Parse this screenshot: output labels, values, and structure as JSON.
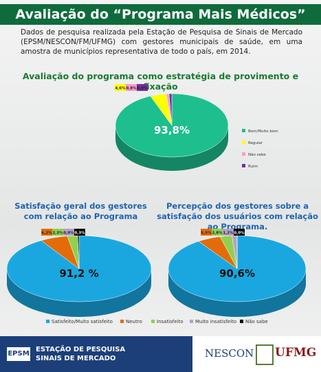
{
  "header": {
    "title": "Avaliação do “Programa Mais Médicos”",
    "text": "Dados de pesquisa realizada pela Estação de Pesquisa de Sinais de Mercado (EPSM/NESCON/FM/UFMG) com gestores municipais de saúde, em uma amostra de municípios representativa de todo o país, em 2014."
  },
  "chart_data": [
    {
      "type": "pie",
      "title": "Avaliação do programa como estratégia de provimento e fixação",
      "categories": [
        "Bom/Muito bom",
        "Regular",
        "Não sabe",
        "Ruim"
      ],
      "values": [
        93.8,
        4.6,
        0.8,
        0.8
      ],
      "value_labels": [
        "93,8%",
        "4,6%",
        "0,8%",
        "0,8%"
      ],
      "colors": [
        "#1dbf8e",
        "#ffff00",
        "#ff99cc",
        "#7030a0"
      ],
      "legend": "right"
    },
    {
      "type": "pie",
      "title": "Satisfação geral dos gestores com relação ao Programa",
      "categories": [
        "Satisfeito/Muito satisfeito",
        "Neutro",
        "Insatisfeito",
        "Muito insatisfeito",
        "Não sabe"
      ],
      "values": [
        91.2,
        6.2,
        2.3,
        0.0,
        0.3
      ],
      "value_labels": [
        "91,2 %",
        "6,2%",
        "2,3%",
        "0,0%",
        "0,3%"
      ],
      "colors": [
        "#1aa7e0",
        "#e36c09",
        "#92d050",
        "#b3a2c7",
        "#000000"
      ],
      "legend": "bottom"
    },
    {
      "type": "pie",
      "title": "Percepção dos gestores sobre a satisfação dos usuários com relação ao Programa.",
      "categories": [
        "Satisfeito/Muito satisfeito",
        "Neutro",
        "Insatisfeito",
        "Muito insatisfeito",
        "Não sabe"
      ],
      "values": [
        90.6,
        5.5,
        2.8,
        1.2,
        0.0
      ],
      "value_labels": [
        "90,6%",
        "5,5%",
        "2,8%",
        "1,2%",
        "0,0%"
      ],
      "colors": [
        "#1aa7e0",
        "#e36c09",
        "#92d050",
        "#b3a2c7",
        "#000000"
      ],
      "legend": "none"
    }
  ],
  "footer": {
    "logo": "EPSM",
    "line1": "ESTAÇÃO DE PESQUISA",
    "line2": "SINAIS DE MERCADO",
    "nescon": "NESCON",
    "ufmg": "UFMG"
  }
}
